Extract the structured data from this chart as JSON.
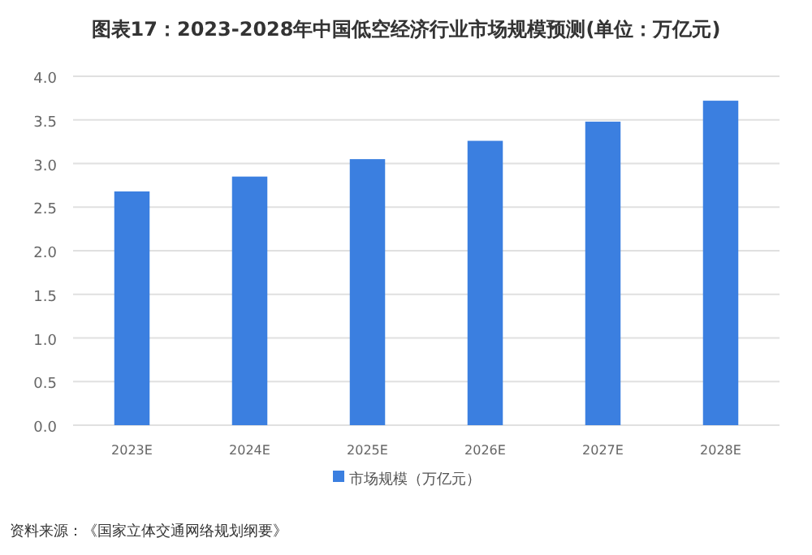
{
  "chart_data": {
    "type": "bar",
    "title": "图表17：2023-2028年中国低空经济行业市场规模预测(单位：万亿元)",
    "categories": [
      "2023E",
      "2024E",
      "2025E",
      "2026E",
      "2027E",
      "2028E"
    ],
    "series": [
      {
        "name": "市场规模（万亿元）",
        "color": "#3b7fe0",
        "values": [
          2.68,
          2.85,
          3.05,
          3.26,
          3.48,
          3.72
        ]
      }
    ],
    "ylim": [
      0,
      4
    ],
    "yticks": [
      {
        "value": 0,
        "label": "0.0"
      },
      {
        "value": 0.5,
        "label": "0.5"
      },
      {
        "value": 1,
        "label": "1.0"
      },
      {
        "value": 1.5,
        "label": "1.5"
      },
      {
        "value": 2,
        "label": "2.0"
      },
      {
        "value": 2.5,
        "label": "2.5"
      },
      {
        "value": 3,
        "label": "3.0"
      },
      {
        "value": 3.5,
        "label": "3.5"
      },
      {
        "value": 4,
        "label": "4.0"
      }
    ],
    "grid": "y",
    "legend": "bottom",
    "annotations": [
      "资料来源：《国家立体交通网络规划纲要》"
    ]
  }
}
